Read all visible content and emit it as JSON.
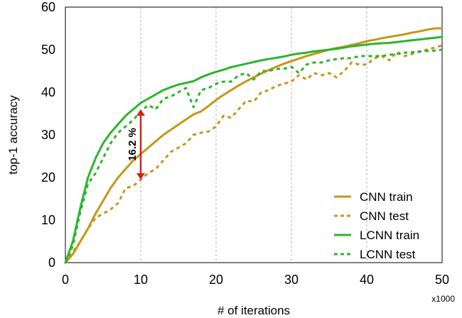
{
  "chart_data": {
    "type": "line",
    "title": "",
    "xlabel": "# of iterations",
    "ylabel": "top-1 accuracy",
    "x_multiplier": "x1000",
    "xlim": [
      0,
      50
    ],
    "ylim": [
      0,
      60
    ],
    "xticks": [
      "0",
      "10",
      "20",
      "30",
      "40",
      "50"
    ],
    "yticks": [
      "0",
      "10",
      "20",
      "30",
      "40",
      "50",
      "60"
    ],
    "grid": "vertical dashed",
    "legend_position": "bottom-right",
    "annotation": {
      "text": "16.2 %",
      "x": 10,
      "y_from": 19.5,
      "y_to": 36,
      "color": "#d62020"
    },
    "series": [
      {
        "name": "CNN train",
        "color": "#c8951a",
        "style": "solid",
        "x": [
          0,
          1,
          2,
          3,
          4,
          5,
          6,
          7,
          8,
          9,
          10,
          11,
          12,
          13,
          14,
          15,
          16,
          17,
          18,
          19,
          20,
          21,
          22,
          23,
          24,
          25,
          26,
          27,
          28,
          29,
          30,
          31,
          32,
          33,
          34,
          35,
          36,
          37,
          38,
          39,
          40,
          41,
          42,
          43,
          44,
          45,
          46,
          47,
          48,
          49,
          50
        ],
        "values": [
          0,
          2,
          5,
          8,
          11.5,
          14.5,
          17.5,
          20,
          22,
          24,
          25.5,
          27,
          28.5,
          30,
          31.2,
          32.4,
          33.6,
          34.8,
          35.5,
          36.8,
          38.2,
          39.4,
          40.5,
          41.6,
          42.6,
          43.5,
          44.4,
          45.2,
          46,
          46.7,
          47.3,
          47.9,
          48.5,
          49,
          49.5,
          50,
          50.4,
          50.7,
          51.1,
          51.5,
          52,
          52.3,
          52.7,
          53,
          53.3,
          53.6,
          54,
          54.3,
          54.7,
          55,
          55
        ]
      },
      {
        "name": "CNN test",
        "color": "#c8951a",
        "style": "dashed",
        "x": [
          0,
          1,
          2,
          3,
          4,
          5,
          6,
          7,
          8,
          9,
          10,
          11,
          12,
          13,
          14,
          15,
          16,
          17,
          18,
          19,
          20,
          21,
          22,
          23,
          24,
          25,
          26,
          27,
          28,
          29,
          30,
          31,
          32,
          33,
          34,
          35,
          36,
          37,
          38,
          39,
          40,
          41,
          42,
          43,
          44,
          45,
          46,
          47,
          48,
          49,
          50
        ],
        "values": [
          0,
          2.5,
          5,
          8,
          10.5,
          11.5,
          12.5,
          14,
          17.5,
          18,
          19.5,
          21,
          22,
          24,
          26,
          27,
          28,
          30,
          30.5,
          30.8,
          32,
          34.5,
          34,
          36,
          38,
          37.8,
          40,
          40.5,
          41.5,
          42,
          42.5,
          44,
          43,
          44.5,
          44,
          44.5,
          43.5,
          45,
          47,
          46.5,
          46.5,
          48,
          48.5,
          47.5,
          49.5,
          48.5,
          49,
          49.5,
          50,
          50.5,
          51
        ]
      },
      {
        "name": "LCNN train",
        "color": "#2bb52b",
        "style": "solid",
        "x": [
          0,
          1,
          2,
          3,
          4,
          5,
          6,
          7,
          8,
          9,
          10,
          11,
          12,
          13,
          14,
          15,
          16,
          17,
          18,
          19,
          20,
          21,
          22,
          23,
          24,
          25,
          26,
          27,
          28,
          29,
          30,
          31,
          32,
          33,
          34,
          35,
          36,
          37,
          38,
          39,
          40,
          41,
          42,
          43,
          44,
          45,
          46,
          47,
          48,
          49,
          50
        ],
        "values": [
          0,
          5,
          13,
          20,
          24.5,
          28,
          30.5,
          32.5,
          34.5,
          36,
          37.5,
          38.5,
          39.5,
          40.5,
          41.2,
          41.8,
          42.2,
          42.6,
          43.5,
          44.2,
          44.8,
          45.3,
          45.9,
          46.3,
          46.7,
          47.1,
          47.5,
          47.8,
          48.1,
          48.4,
          48.8,
          49.1,
          49.3,
          49.6,
          49.8,
          50,
          50.2,
          50.5,
          50.8,
          51,
          51.2,
          51.4,
          51.5,
          51.6,
          51.8,
          52,
          52.2,
          52.4,
          52.6,
          52.8,
          53
        ]
      },
      {
        "name": "LCNN test",
        "color": "#2bb52b",
        "style": "dashed",
        "x": [
          0,
          1,
          2,
          3,
          4,
          5,
          6,
          7,
          8,
          9,
          10,
          11,
          12,
          13,
          14,
          15,
          16,
          17,
          18,
          19,
          20,
          21,
          22,
          23,
          24,
          25,
          26,
          27,
          28,
          29,
          30,
          31,
          32,
          33,
          34,
          35,
          36,
          37,
          38,
          39,
          40,
          41,
          42,
          43,
          44,
          45,
          46,
          47,
          48,
          49,
          50
        ],
        "values": [
          0,
          4,
          12,
          18.5,
          21,
          24.5,
          28,
          30.5,
          32,
          33.5,
          35.5,
          37,
          36,
          38.5,
          39,
          40,
          41,
          36.5,
          40.5,
          41,
          42,
          42.5,
          42.5,
          44,
          44.5,
          43,
          45,
          45,
          45.5,
          45.5,
          46,
          44.5,
          46.5,
          47,
          47,
          47.5,
          47.8,
          48,
          48,
          48.5,
          48.5,
          48.5,
          48.5,
          48.8,
          49,
          49.3,
          49.4,
          49.6,
          49.7,
          49.8,
          50
        ]
      }
    ]
  }
}
